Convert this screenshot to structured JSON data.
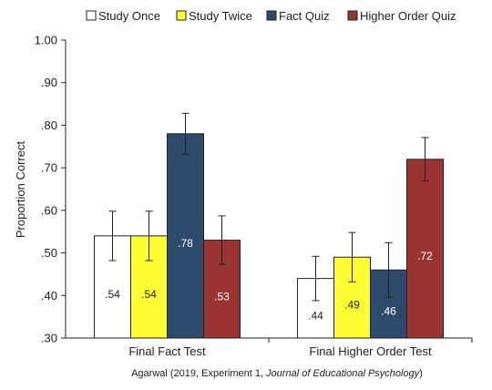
{
  "chart_data": {
    "type": "bar",
    "categories": [
      "Final Fact Test",
      "Final Higher Order Test"
    ],
    "ylabel": "Proportion Correct",
    "ylim": [
      0.3,
      1.0
    ],
    "yticks": [
      0.3,
      0.4,
      0.5,
      0.6,
      0.7,
      0.8,
      0.9,
      1.0
    ],
    "ytick_labels": [
      ".30",
      ".40",
      ".50",
      ".60",
      ".70",
      ".80",
      ".90",
      "1.00"
    ],
    "legend_position": "top",
    "grid": false,
    "series": [
      {
        "name": "Study Once",
        "color": "#ffffff",
        "values": [
          0.54,
          0.44
        ],
        "labels": [
          ".54",
          ".44"
        ],
        "errors": [
          0.058,
          0.052
        ]
      },
      {
        "name": "Study Twice",
        "color": "#ffff33",
        "values": [
          0.54,
          0.49
        ],
        "labels": [
          ".54",
          ".49"
        ],
        "errors": [
          0.058,
          0.058
        ]
      },
      {
        "name": "Fact Quiz",
        "color": "#2e4a6b",
        "values": [
          0.78,
          0.46
        ],
        "labels": [
          ".78",
          ".46"
        ],
        "errors": [
          0.048,
          0.064
        ]
      },
      {
        "name": "Higher Order Quiz",
        "color": "#9c3333",
        "values": [
          0.53,
          0.72
        ],
        "labels": [
          ".53",
          ".72"
        ],
        "errors": [
          0.057,
          0.051
        ]
      }
    ]
  },
  "source": {
    "prefix": "Agarwal (2019, Experiment 1, ",
    "journal": "Journal of Educational Psychology",
    "suffix": ")"
  }
}
